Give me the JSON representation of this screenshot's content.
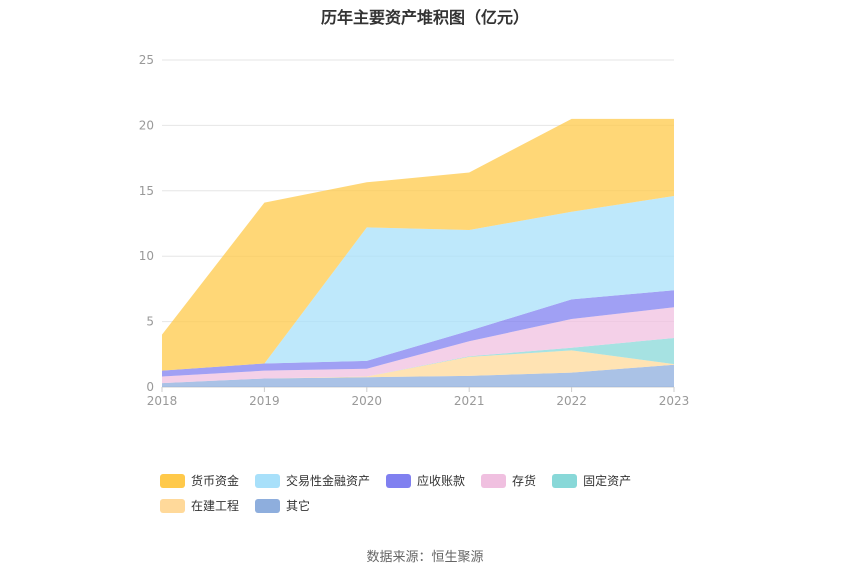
{
  "chart_data": {
    "type": "area",
    "stacked": true,
    "title": "历年主要资产堆积图（亿元）",
    "x": [
      "2018",
      "2019",
      "2020",
      "2021",
      "2022",
      "2023"
    ],
    "y_ticks": [
      "0",
      "5",
      "10",
      "15",
      "20",
      "25"
    ],
    "ylim": [
      0,
      25
    ],
    "grid": true,
    "legend_position": "bottom",
    "series": [
      {
        "name": "其它",
        "color": "#8eaedd",
        "values": [
          0.3,
          0.65,
          0.75,
          0.85,
          1.1,
          1.7
        ]
      },
      {
        "name": "在建工程",
        "color": "#ffd99a",
        "values": [
          0.0,
          0.0,
          0.05,
          1.45,
          1.7,
          0.05
        ]
      },
      {
        "name": "固定资产",
        "color": "#88d8d8",
        "values": [
          0.0,
          0.0,
          0.0,
          0.05,
          0.2,
          2.0
        ]
      },
      {
        "name": "存货",
        "color": "#f0c0e0",
        "values": [
          0.5,
          0.6,
          0.6,
          1.15,
          2.2,
          2.35
        ]
      },
      {
        "name": "应收账款",
        "color": "#8080f0",
        "values": [
          0.45,
          0.55,
          0.6,
          0.8,
          1.5,
          1.3
        ]
      },
      {
        "name": "交易性金融资产",
        "color": "#a8e0fa",
        "values": [
          0.0,
          0.0,
          10.2,
          7.7,
          6.7,
          7.2
        ]
      },
      {
        "name": "货币资金",
        "color": "#ffc94a",
        "values": [
          2.75,
          12.3,
          3.45,
          4.4,
          7.1,
          5.9
        ]
      }
    ],
    "legend_order": [
      "货币资金",
      "交易性金融资产",
      "应收账款",
      "存货",
      "固定资产",
      "在建工程",
      "其它"
    ],
    "source": "数据来源：恒生聚源"
  }
}
